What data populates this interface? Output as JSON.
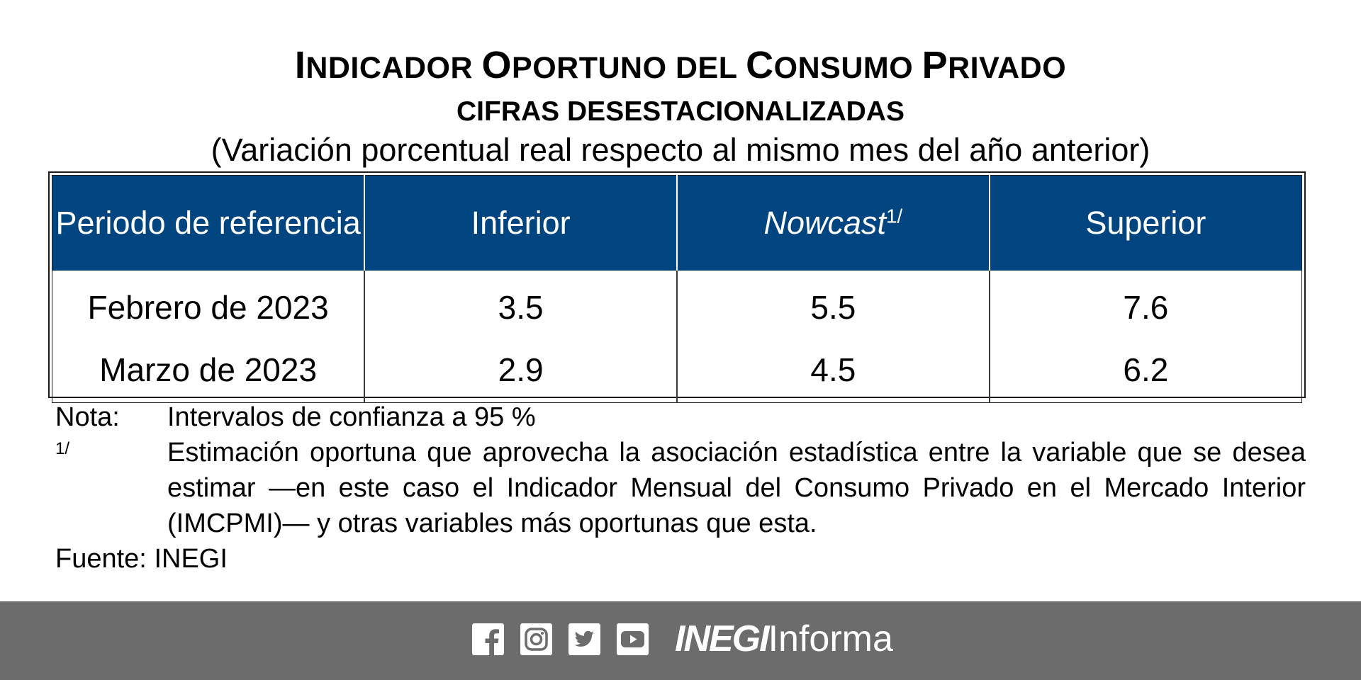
{
  "header": {
    "title_parts": [
      {
        "cap": "I",
        "rest": "NDICADOR "
      },
      {
        "cap": "O",
        "rest": "PORTUNO DEL "
      },
      {
        "cap": "C",
        "rest": "ONSUMO "
      },
      {
        "cap": "P",
        "rest": "RIVADO"
      }
    ],
    "subtitle": "CIFRAS DESESTACIONALIZADAS",
    "units": "(Variación porcentual real respecto al mismo mes del año anterior)"
  },
  "table": {
    "columns": [
      "Periodo de referencia",
      "Inferior",
      "Nowcast",
      "Superior"
    ],
    "nowcast_footnote_marker": "1/",
    "rows": [
      {
        "period": "Febrero de 2023",
        "inferior": "3.5",
        "nowcast": "5.5",
        "superior": "7.6"
      },
      {
        "period": "Marzo de 2023",
        "inferior": "2.9",
        "nowcast": "4.5",
        "superior": "6.2"
      }
    ],
    "header_bg": "#004580"
  },
  "notes": {
    "nota_label": "Nota:",
    "nota_text": "Intervalos de confianza a 95 %",
    "footnote_marker": "1/",
    "footnote_text": "Estimación oportuna que aprovecha la asociación estadística entre la variable que se desea estimar —en este caso el Indicador Mensual del Consumo Privado en el Mercado Interior (IMCPMI)— y otras variables más oportunas que esta.",
    "source_label": "Fuente:",
    "source_text": "INEGI"
  },
  "footer": {
    "bg": "#6c6c6c",
    "icons": [
      "facebook-icon",
      "instagram-icon",
      "twitter-icon",
      "youtube-icon"
    ],
    "brand_bold": "INEGI",
    "brand_light": "Informa"
  }
}
